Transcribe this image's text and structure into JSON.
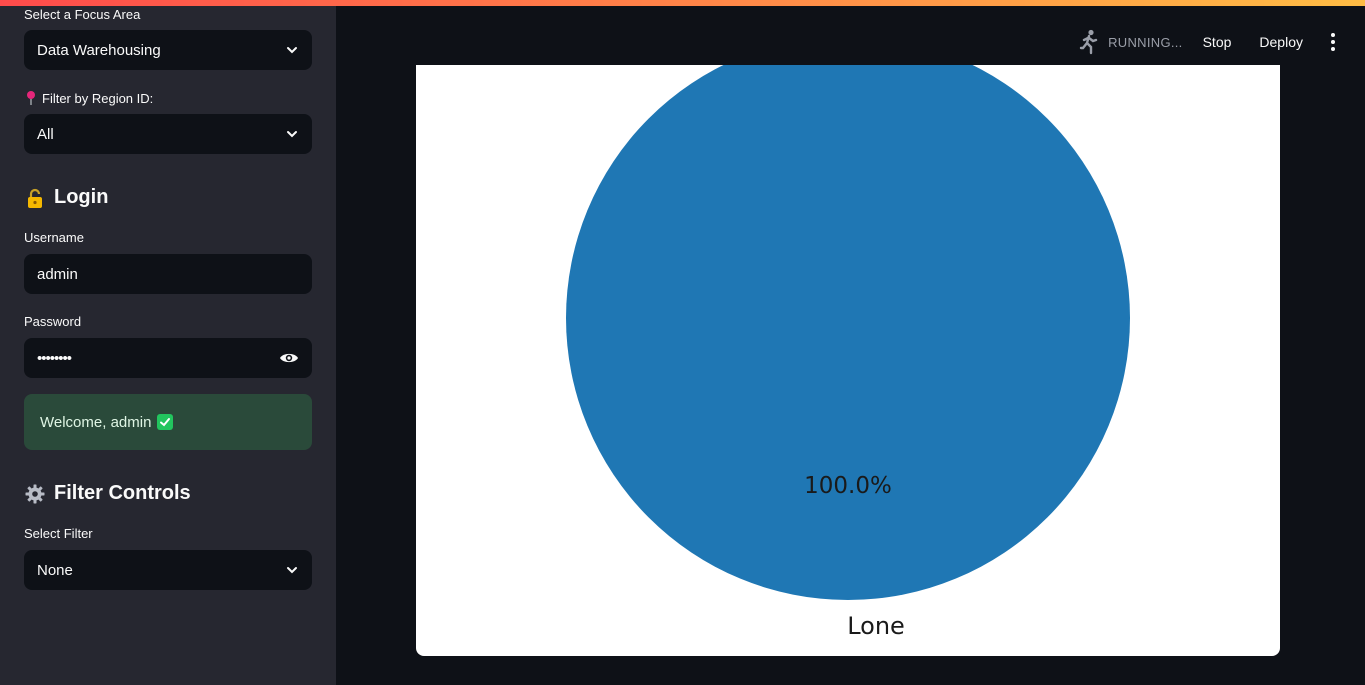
{
  "sidebar": {
    "focus_label": "Select a Focus Area",
    "focus_value": "Data Warehousing",
    "region_label": "Filter by Region ID:",
    "region_value": "All",
    "login_heading": "Login",
    "username_label": "Username",
    "username_value": "admin",
    "password_label": "Password",
    "password_value": "••••••••",
    "welcome_text": "Welcome, admin",
    "filter_heading": "Filter Controls",
    "filter_label": "Select Filter",
    "filter_value": "None"
  },
  "header": {
    "status": "RUNNING...",
    "stop": "Stop",
    "deploy": "Deploy"
  },
  "colors": {
    "accent_gradient_start": "#ff4b4b",
    "accent_gradient_end": "#ffbd45",
    "pie_slice": "#1f77b4",
    "success_bg": "#2a4a3a"
  },
  "chart_data": {
    "type": "pie",
    "categories": [
      "Lone"
    ],
    "values": [
      100
    ],
    "labels": [
      "100.0%"
    ]
  }
}
